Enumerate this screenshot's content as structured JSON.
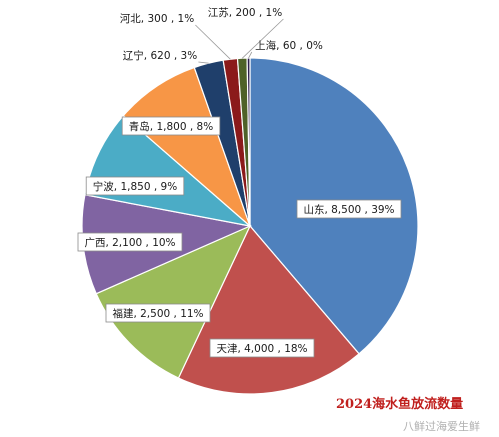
{
  "chart_data": {
    "type": "pie",
    "title": "2024海水鱼放流数量",
    "watermark": "八鲜过海爱生鲜",
    "slices": [
      {
        "name": "山东",
        "value": 8500,
        "percent": "39%",
        "label": "山东, 8,500 , 39%",
        "color": "#4f81bd"
      },
      {
        "name": "天津",
        "value": 4000,
        "percent": "18%",
        "label": "天津, 4,000 , 18%",
        "color": "#c0504d"
      },
      {
        "name": "福建",
        "value": 2500,
        "percent": "11%",
        "label": "福建, 2,500 , 11%",
        "color": "#9bbb59"
      },
      {
        "name": "广西",
        "value": 2100,
        "percent": "10%",
        "label": "广西, 2,100 , 10%",
        "color": "#8064a2"
      },
      {
        "name": "宁波",
        "value": 1850,
        "percent": "9%",
        "label": "宁波, 1,850 , 9%",
        "color": "#4bacc6"
      },
      {
        "name": "青岛",
        "value": 1800,
        "percent": "8%",
        "label": "青岛, 1,800 , 8%",
        "color": "#f79646"
      },
      {
        "name": "辽宁",
        "value": 620,
        "percent": "3%",
        "label": "辽宁, 620 , 3%",
        "color": "#1f3f6b"
      },
      {
        "name": "河北",
        "value": 300,
        "percent": "1%",
        "label": "河北, 300 , 1%",
        "color": "#8b1a1a"
      },
      {
        "name": "江苏",
        "value": 200,
        "percent": "1%",
        "label": "江苏, 200 , 1%",
        "color": "#4f6228"
      },
      {
        "name": "上海",
        "value": 60,
        "percent": "0%",
        "label": "上海, 60 , 0%",
        "color": "#2f1f4f"
      }
    ]
  }
}
